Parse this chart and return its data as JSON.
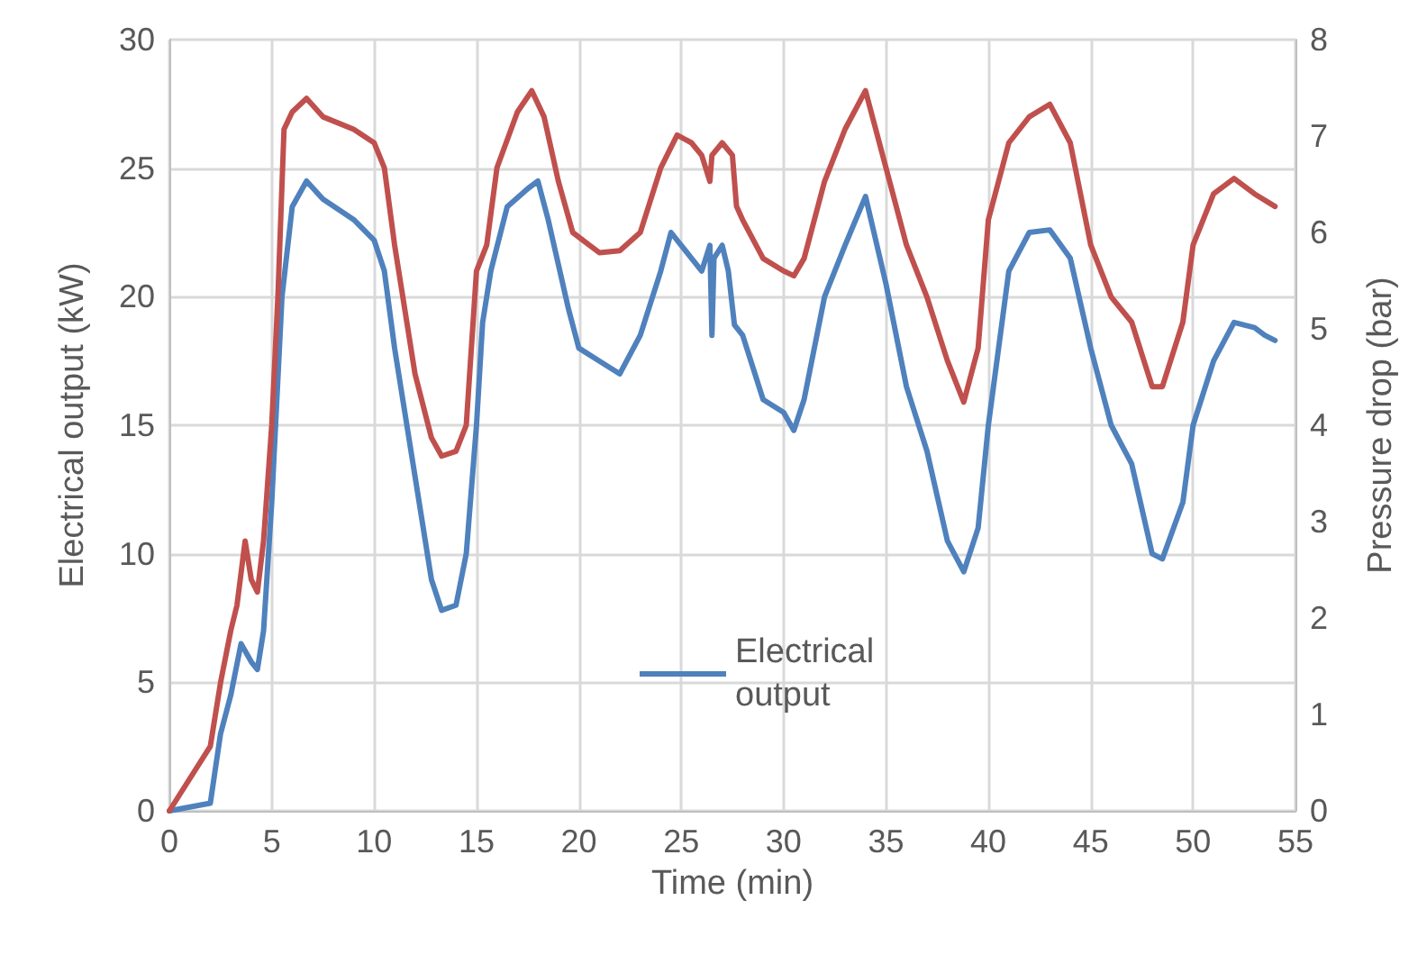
{
  "chart_data": {
    "type": "line",
    "xlabel": "Time (min)",
    "ylabel": "Electrical output (kW)",
    "y2label": "Pressure drop (bar)",
    "xlim": [
      0,
      55
    ],
    "xticks": [
      0,
      5,
      10,
      15,
      20,
      25,
      30,
      35,
      40,
      45,
      50,
      55
    ],
    "ylim": [
      0,
      30
    ],
    "yticks": [
      0,
      5,
      10,
      15,
      20,
      25,
      30
    ],
    "y2lim": [
      0,
      8
    ],
    "y2ticks": [
      0,
      1,
      2,
      3,
      4,
      5,
      6,
      7,
      8
    ],
    "grid": true,
    "legend": "bottom",
    "marker": "none",
    "line_style": "solid",
    "series": [
      {
        "name": "Electrical output",
        "color": "#4f81bd",
        "x": [
          0,
          2,
          2.5,
          3,
          3.5,
          4,
          4.3,
          4.6,
          5,
          5.5,
          6,
          6.7,
          7.5,
          9,
          10,
          10.5,
          11,
          12,
          12.8,
          13.3,
          14,
          14.5,
          15,
          15.3,
          15.7,
          16.5,
          17.5,
          18,
          18.5,
          19.5,
          20,
          21,
          22,
          23,
          24,
          24.5,
          25,
          25.5,
          26,
          26.4,
          26.5,
          26.6,
          27,
          27.3,
          27.6,
          28,
          29,
          30,
          30.5,
          31,
          32,
          33,
          34,
          35,
          36,
          37,
          38,
          38.8,
          39.5,
          40,
          41,
          42,
          43,
          44,
          45,
          46,
          47,
          48,
          48.5,
          49.5,
          50,
          51,
          52,
          53,
          53.5,
          54
        ],
        "values": [
          0,
          0.3,
          3,
          4.5,
          6.5,
          5.8,
          5.5,
          7,
          12,
          20,
          23.5,
          24.5,
          23.8,
          23,
          22.2,
          21,
          18,
          13,
          9,
          7.8,
          8,
          10,
          15,
          19,
          21,
          23.5,
          24.2,
          24.5,
          23,
          19.5,
          18,
          17.5,
          17,
          18.5,
          21,
          22.5,
          22,
          21.5,
          21,
          22,
          18.5,
          21.5,
          22,
          21,
          18.9,
          18.5,
          16,
          15.5,
          14.8,
          16,
          20,
          22,
          23.9,
          20.5,
          16.5,
          14,
          10.5,
          9.3,
          11,
          15,
          21,
          22.5,
          22.6,
          21.5,
          18,
          15,
          13.5,
          10,
          9.8,
          12,
          15,
          17.5,
          19,
          18.8,
          18.5,
          18.3
        ]
      },
      {
        "color": "#c0504d",
        "axis": "y2",
        "x": [
          0,
          2,
          2.5,
          3,
          3.3,
          3.7,
          4,
          4.3,
          4.6,
          5,
          5.3,
          5.6,
          6,
          6.7,
          7.5,
          9,
          10,
          10.5,
          11,
          12,
          12.8,
          13.3,
          14,
          14.5,
          15,
          15.5,
          16,
          17,
          17.7,
          18.3,
          19,
          19.7,
          20.5,
          21,
          22,
          23,
          24,
          24.8,
          25.5,
          26,
          26.4,
          26.5,
          27,
          27.5,
          27.7,
          28,
          29,
          30,
          30.5,
          31,
          32,
          33,
          34,
          35,
          36,
          37,
          38,
          38.8,
          39.5,
          40,
          41,
          42,
          43,
          44,
          45,
          46,
          47,
          48,
          48.5,
          49.5,
          50,
          51,
          52,
          53,
          54
        ],
        "values": [
          0,
          0.67,
          1.33,
          1.87,
          2.13,
          2.8,
          2.4,
          2.27,
          2.8,
          4.0,
          5.33,
          7.07,
          7.25,
          7.39,
          7.2,
          7.07,
          6.93,
          6.67,
          5.87,
          4.53,
          3.87,
          3.68,
          3.73,
          4.0,
          5.6,
          5.87,
          6.67,
          7.25,
          7.47,
          7.2,
          6.53,
          6.0,
          5.87,
          5.79,
          5.81,
          6.0,
          6.67,
          7.01,
          6.93,
          6.8,
          6.53,
          6.8,
          6.93,
          6.8,
          6.27,
          6.13,
          5.73,
          5.6,
          5.55,
          5.73,
          6.53,
          7.07,
          7.47,
          6.67,
          5.87,
          5.33,
          4.67,
          4.24,
          4.8,
          6.13,
          6.93,
          7.2,
          7.33,
          6.93,
          5.87,
          5.33,
          5.07,
          4.4,
          4.4,
          5.07,
          5.87,
          6.4,
          6.56,
          6.4,
          6.27
        ]
      }
    ]
  }
}
